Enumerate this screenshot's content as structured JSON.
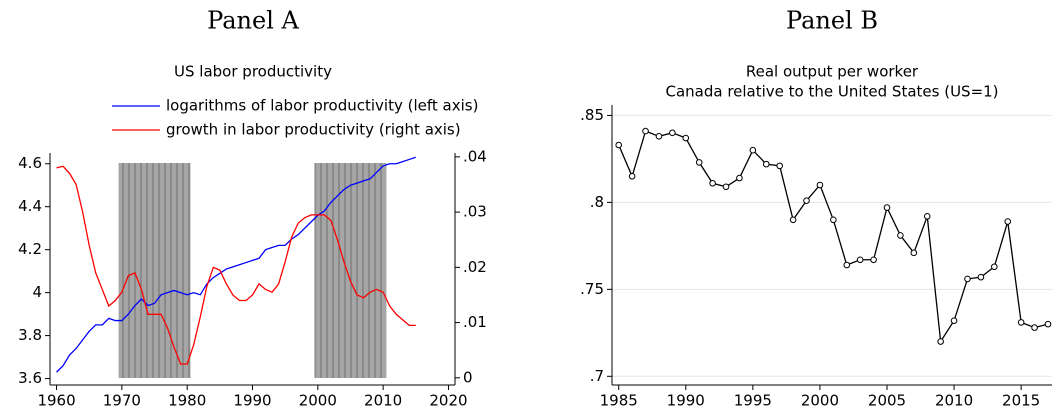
{
  "chart_data": [
    {
      "type": "line",
      "panel": "Panel A",
      "title": "US labor productivity",
      "x": [
        1960,
        1961,
        1962,
        1963,
        1964,
        1965,
        1966,
        1967,
        1968,
        1969,
        1970,
        1971,
        1972,
        1973,
        1974,
        1975,
        1976,
        1977,
        1978,
        1979,
        1980,
        1981,
        1982,
        1983,
        1984,
        1985,
        1986,
        1987,
        1988,
        1989,
        1990,
        1991,
        1992,
        1993,
        1994,
        1995,
        1996,
        1997,
        1998,
        1999,
        2000,
        2001,
        2002,
        2003,
        2004,
        2005,
        2006,
        2007,
        2008,
        2009,
        2010,
        2011,
        2012,
        2013,
        2014,
        2015
      ],
      "series": [
        {
          "name": "logarithms of labor productivity (left axis)",
          "color": "#0000ff",
          "values": [
            3.63,
            3.66,
            3.71,
            3.74,
            3.78,
            3.82,
            3.85,
            3.85,
            3.88,
            3.87,
            3.87,
            3.9,
            3.94,
            3.97,
            3.94,
            3.95,
            3.99,
            4.0,
            4.01,
            4.0,
            3.99,
            4.0,
            3.99,
            4.04,
            4.07,
            4.09,
            4.11,
            4.12,
            4.13,
            4.14,
            4.15,
            4.16,
            4.2,
            4.21,
            4.22,
            4.22,
            4.25,
            4.27,
            4.3,
            4.33,
            4.36,
            4.38,
            4.42,
            4.45,
            4.48,
            4.5,
            4.51,
            4.52,
            4.53,
            4.56,
            4.59,
            4.6,
            4.6,
            4.61,
            4.62,
            4.63
          ]
        },
        {
          "name": "growth in labor productivity (right axis)",
          "color": "#ff0000",
          "axis": "y2",
          "values": [
            0.038,
            0.0383,
            0.037,
            0.035,
            0.03,
            0.024,
            0.019,
            0.016,
            0.013,
            0.014,
            0.0155,
            0.0185,
            0.019,
            0.016,
            0.0115,
            0.0115,
            0.0115,
            0.009,
            0.0055,
            0.0025,
            0.0025,
            0.006,
            0.011,
            0.0165,
            0.02,
            0.0195,
            0.017,
            0.015,
            0.014,
            0.014,
            0.015,
            0.017,
            0.016,
            0.0155,
            0.017,
            0.021,
            0.0255,
            0.028,
            0.029,
            0.0295,
            0.0295,
            0.0295,
            0.0285,
            0.025,
            0.021,
            0.0175,
            0.015,
            0.0145,
            0.0155,
            0.016,
            0.0155,
            0.013,
            0.0115,
            0.0105,
            0.0095,
            0.0095
          ]
        }
      ],
      "shaded_periods": [
        [
          1969.5,
          1980.5
        ],
        [
          1999.5,
          2010.5
        ]
      ],
      "xlim": [
        1959,
        2021
      ],
      "xticks": [
        1960,
        1970,
        1980,
        1990,
        2000,
        2010,
        2020
      ],
      "ylim": [
        3.57,
        4.65
      ],
      "yticks": [
        3.6,
        3.8,
        4,
        4.2,
        4.4,
        4.6
      ],
      "y2lim": [
        -0.0013,
        0.0407
      ],
      "y2ticks": [
        0,
        {
          "value": 0.01,
          "label": ".01"
        },
        {
          "value": 0.02,
          "label": ".02"
        },
        {
          "value": 0.03,
          "label": ".03"
        },
        {
          "value": 0.04,
          "label": ".04"
        }
      ],
      "grid": false,
      "markers": false
    },
    {
      "type": "line",
      "panel": "Panel B",
      "title": "Real output per worker",
      "subtitle": "Canada relative to the United States (US=1)",
      "x": [
        1985,
        1986,
        1987,
        1988,
        1989,
        1990,
        1991,
        1992,
        1993,
        1994,
        1995,
        1996,
        1997,
        1998,
        1999,
        2000,
        2001,
        2002,
        2003,
        2004,
        2005,
        2006,
        2007,
        2008,
        2009,
        2010,
        2011,
        2012,
        2013,
        2014,
        2015,
        2016,
        2017
      ],
      "series": [
        {
          "color": "#000000",
          "values": [
            0.833,
            0.815,
            0.841,
            0.838,
            0.84,
            0.837,
            0.823,
            0.811,
            0.809,
            0.814,
            0.83,
            0.822,
            0.821,
            0.79,
            0.801,
            0.81,
            0.79,
            0.764,
            0.767,
            0.767,
            0.797,
            0.781,
            0.771,
            0.792,
            0.72,
            0.732,
            0.756,
            0.757,
            0.763,
            0.789,
            0.731,
            0.728,
            0.73
          ]
        }
      ],
      "xlim": [
        1984.5,
        2017.3
      ],
      "xticks": [
        1985,
        1990,
        1995,
        2000,
        2005,
        2010,
        2015
      ],
      "ylim": [
        0.695,
        0.856
      ],
      "yticks": [
        {
          "value": 0.7,
          "label": ".7"
        },
        {
          "value": 0.75,
          "label": ".75"
        },
        {
          "value": 0.8,
          "label": ".8"
        },
        {
          "value": 0.85,
          "label": ".85"
        }
      ],
      "grid": true,
      "markers": true
    }
  ]
}
